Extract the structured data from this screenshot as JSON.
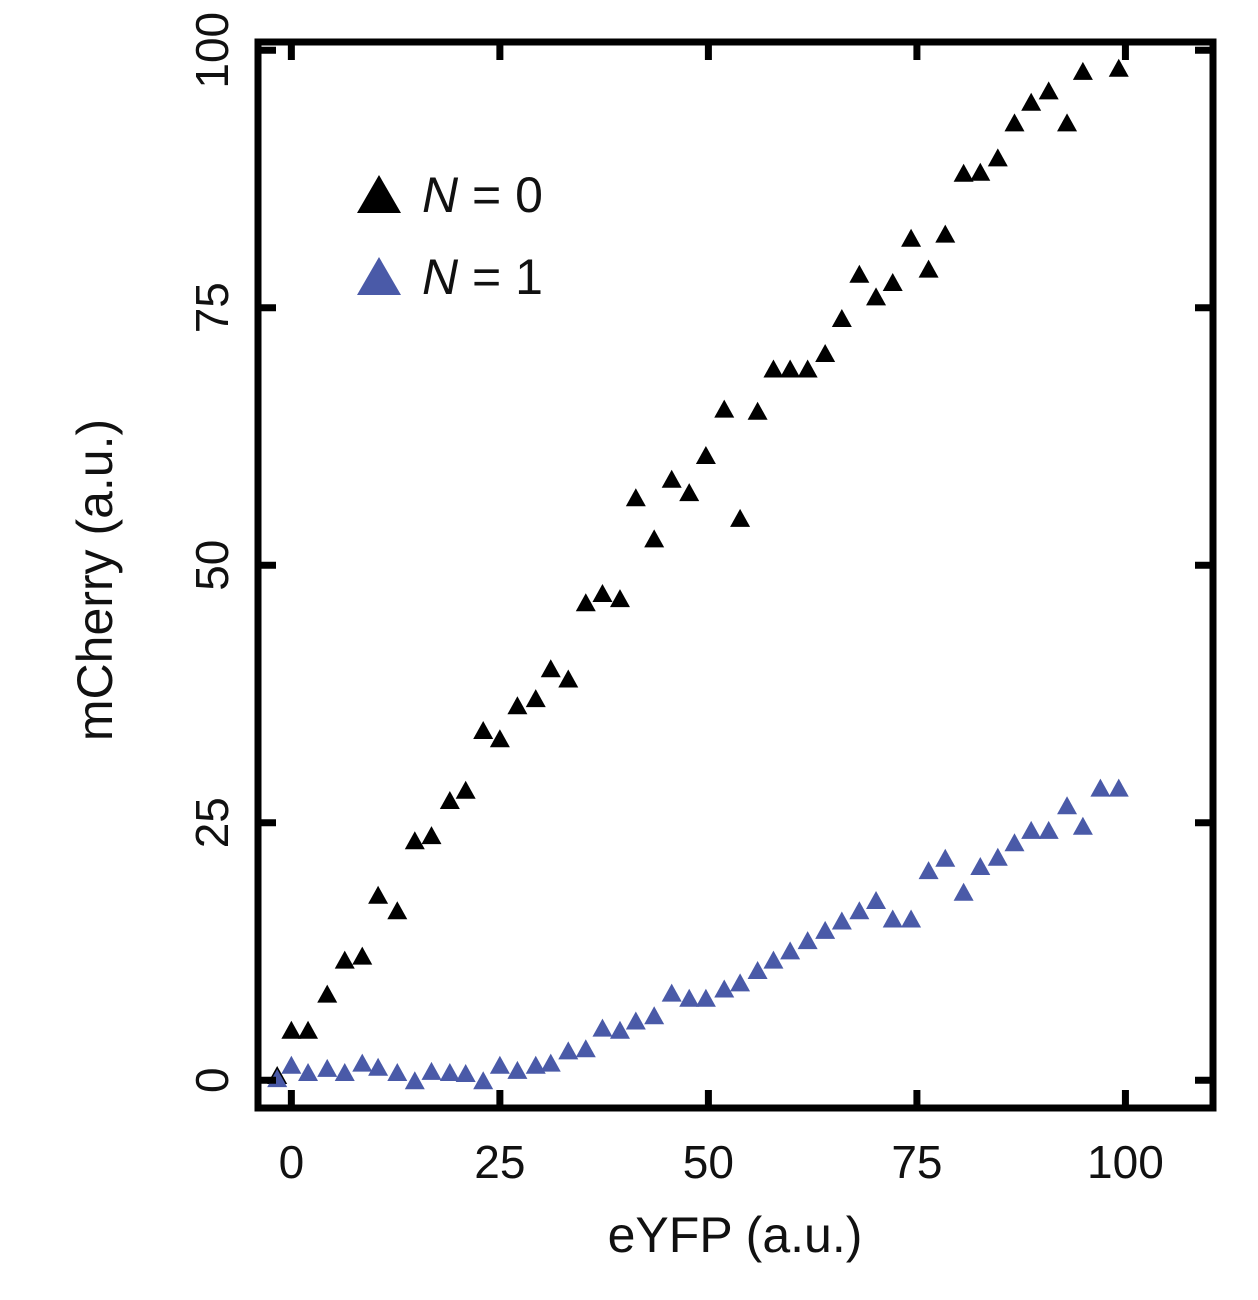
{
  "chart_data": {
    "type": "scatter",
    "title": "",
    "xlabel": "eYFP (a.u.)",
    "ylabel": "mCherry (a.u.)",
    "xlim": [
      -4,
      110.5
    ],
    "ylim": [
      -2.7,
      100.8
    ],
    "xticks": [
      0,
      25,
      50,
      75,
      100
    ],
    "yticks": [
      0,
      25,
      50,
      75,
      100
    ],
    "xtick_labels": [
      "0",
      "25",
      "50",
      "75",
      "100"
    ],
    "ytick_labels": [
      "0",
      "25",
      "50",
      "75",
      "100"
    ],
    "grid": false,
    "legend_position": "top-left",
    "series": [
      {
        "name": "N = 0",
        "legend_var": "N",
        "legend_rest": " = 0",
        "color": "#000000",
        "marker": "triangle",
        "x": [
          -1.7,
          0,
          2,
          4.3,
          6.4,
          8.5,
          10.4,
          12.7,
          14.8,
          16.8,
          19,
          20.9,
          23,
          25,
          27.1,
          29.3,
          31.1,
          33.2,
          35.3,
          37.3,
          39.4,
          41.3,
          43.5,
          45.6,
          47.7,
          49.7,
          51.9,
          53.8,
          55.9,
          57.8,
          59.8,
          61.9,
          64,
          66,
          68.1,
          70.1,
          72.1,
          74.3,
          76.4,
          78.4,
          80.6,
          82.6,
          84.7,
          86.7,
          88.7,
          90.8,
          93,
          94.9,
          99.2
        ],
        "y": [
          0.5,
          4.9,
          4.9,
          8.4,
          11.7,
          12.1,
          18,
          16.5,
          23.3,
          23.8,
          27.2,
          28.2,
          34,
          33.2,
          36.4,
          37.1,
          40,
          39,
          46.4,
          47.3,
          46.8,
          56.6,
          52.6,
          58.4,
          57.1,
          60.7,
          65.2,
          54.6,
          65,
          69.1,
          69.1,
          69.1,
          70.6,
          74,
          78.3,
          76.1,
          77.5,
          81.8,
          78.8,
          82.2,
          88.1,
          88.2,
          89.6,
          93,
          95,
          96.1,
          93,
          98,
          98.3
        ]
      },
      {
        "name": "N = 1",
        "legend_var": "N",
        "legend_rest": " = 1",
        "color": "#4a5aa8",
        "marker": "triangle",
        "x": [
          -1.7,
          0,
          2,
          4.3,
          6.4,
          8.5,
          10.4,
          12.7,
          14.8,
          16.8,
          19,
          20.9,
          23,
          25,
          27.1,
          29.3,
          31.1,
          33.2,
          35.3,
          37.3,
          39.4,
          41.3,
          43.5,
          45.6,
          47.7,
          49.7,
          51.9,
          53.8,
          55.9,
          57.8,
          59.8,
          61.9,
          64,
          66,
          68.1,
          70.1,
          72.1,
          74.3,
          76.4,
          78.4,
          80.6,
          82.6,
          84.7,
          86.7,
          88.7,
          90.8,
          93,
          94.9,
          97,
          99.2
        ],
        "y": [
          0.2,
          1.5,
          0.8,
          1.2,
          0.8,
          1.7,
          1.3,
          0.8,
          0,
          0.9,
          0.8,
          0.7,
          0,
          1.5,
          1,
          1.5,
          1.7,
          2.9,
          3.1,
          5.1,
          4.9,
          5.8,
          6.3,
          8.5,
          8,
          8,
          8.9,
          9.5,
          10.7,
          11.7,
          12.6,
          13.6,
          14.6,
          15.5,
          16.5,
          17.5,
          15.7,
          15.7,
          20.4,
          21.6,
          18.3,
          20.8,
          21.7,
          23.1,
          24.3,
          24.3,
          26.7,
          24.7,
          28.4,
          28.4
        ]
      }
    ]
  }
}
